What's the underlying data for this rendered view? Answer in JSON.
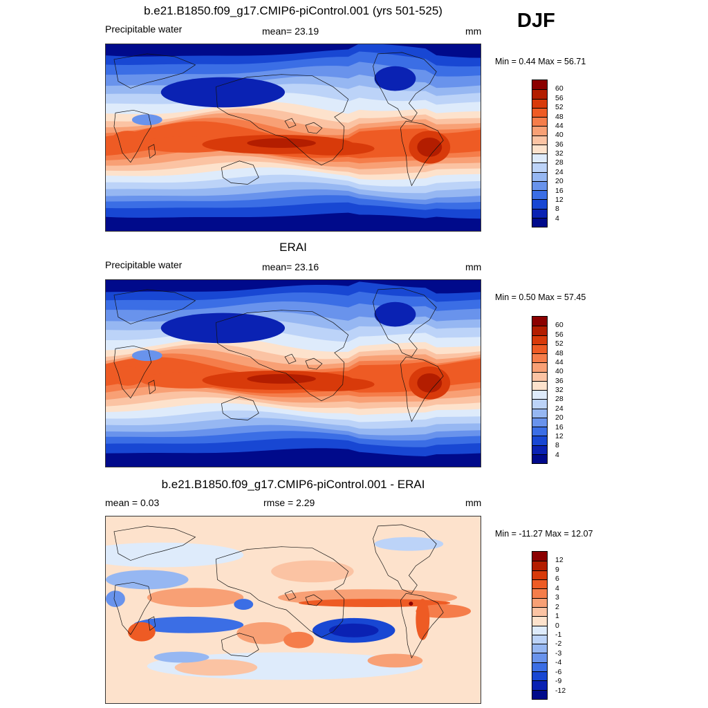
{
  "season": "DJF",
  "panels": [
    {
      "title": "b.e21.B1850.f09_g17.CMIP6-piControl.001 (yrs 501-525)",
      "left_label": "Precipitable water",
      "center_label": "mean=  23.19",
      "units": "mm",
      "minmax": "Min =   0.44 Max =  56.71",
      "palette": "abs"
    },
    {
      "title": "ERAI",
      "left_label": "Precipitable water",
      "center_label": "mean=  23.16",
      "units": "mm",
      "minmax": "Min =   0.50 Max =  57.45",
      "palette": "abs"
    },
    {
      "title": "b.e21.B1850.f09_g17.CMIP6-piControl.001 - ERAI",
      "left_label": "mean =   0.03",
      "center_label": "rmse =   2.29",
      "units": "mm",
      "minmax": "Min = -11.27 Max =  12.07",
      "palette": "diff"
    }
  ],
  "colorbars": {
    "abs": {
      "levels": [
        "60",
        "56",
        "52",
        "48",
        "44",
        "40",
        "36",
        "32",
        "28",
        "24",
        "20",
        "16",
        "12",
        "8",
        "4"
      ],
      "colors": [
        "#8b0000",
        "#b31d00",
        "#d83a0a",
        "#ee5b24",
        "#f57d4a",
        "#f8a075",
        "#fbc3a3",
        "#fde2cc",
        "#deebfb",
        "#bcd3f8",
        "#96b7f2",
        "#6993ec",
        "#3b6ee5",
        "#1847d3",
        "#0a22b3",
        "#000a8b"
      ]
    },
    "diff": {
      "levels": [
        "12",
        "9",
        "6",
        "4",
        "3",
        "2",
        "1",
        "0",
        "-1",
        "-2",
        "-3",
        "-4",
        "-6",
        "-9",
        "-12"
      ],
      "colors": [
        "#8b0000",
        "#b31d00",
        "#d83a0a",
        "#ee5b24",
        "#f57d4a",
        "#f8a075",
        "#fbc3a3",
        "#fde2cc",
        "#deebfb",
        "#bcd3f8",
        "#96b7f2",
        "#6993ec",
        "#3b6ee5",
        "#1847d3",
        "#0a22b3",
        "#000a8b"
      ]
    }
  }
}
